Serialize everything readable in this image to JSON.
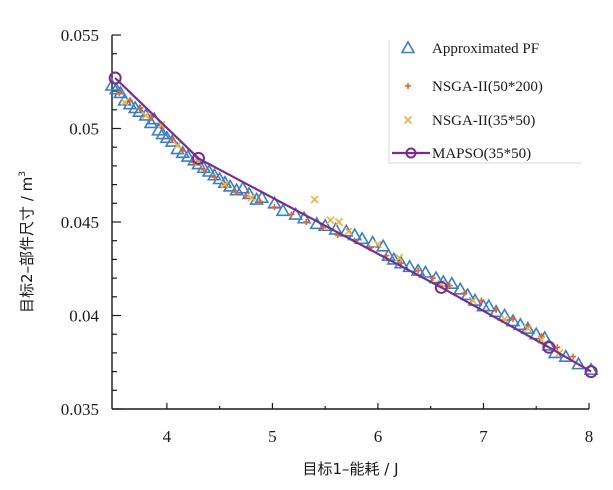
{
  "chart_data": {
    "type": "scatter",
    "title": "",
    "xlabel": "目标1–能耗 / J",
    "ylabel": "目标2–部件尺寸 / m",
    "ylabel_superscript": "3",
    "xlim": [
      3.48,
      8.0
    ],
    "ylim": [
      0.035,
      0.055
    ],
    "x_ticks": [
      4,
      5,
      6,
      7,
      8
    ],
    "x_tick_labels": [
      "4",
      "5",
      "6",
      "7",
      "8"
    ],
    "x_minor_ticks": [
      4.5,
      5.5,
      6.5,
      7.5
    ],
    "y_ticks": [
      0.035,
      0.04,
      0.045,
      0.05,
      0.055
    ],
    "y_tick_labels": [
      "0.035",
      "0.04",
      "0.045",
      "0.05",
      "0.055"
    ],
    "y_minor_step": 0.001,
    "grid": false,
    "legend_position": "top-right",
    "series": [
      {
        "name": "Approximated PF",
        "marker": "triangle-open",
        "color": "#3a7fc4",
        "x": [
          3.48,
          3.52,
          3.56,
          3.6,
          3.65,
          3.7,
          3.74,
          3.8,
          3.85,
          3.88,
          3.92,
          3.96,
          4.0,
          4.05,
          4.1,
          4.15,
          4.2,
          4.26,
          4.3,
          4.35,
          4.4,
          4.45,
          4.5,
          4.55,
          4.6,
          4.66,
          4.72,
          4.78,
          4.85,
          4.9,
          5.02,
          5.1,
          5.22,
          5.3,
          5.42,
          5.5,
          5.6,
          5.7,
          5.78,
          5.85,
          5.95,
          6.05,
          6.1,
          6.15,
          6.22,
          6.3,
          6.38,
          6.45,
          6.55,
          6.62,
          6.7,
          6.78,
          6.85,
          6.92,
          7.0,
          7.05,
          7.12,
          7.2,
          7.28,
          7.35,
          7.42,
          7.5,
          7.58,
          7.62,
          7.68,
          7.78,
          7.9,
          8.02
        ],
        "y": [
          0.0523,
          0.0521,
          0.0519,
          0.0515,
          0.0513,
          0.0511,
          0.0509,
          0.0507,
          0.0503,
          0.0505,
          0.0499,
          0.0497,
          0.0495,
          0.0493,
          0.0489,
          0.0487,
          0.0485,
          0.0483,
          0.0481,
          0.0479,
          0.0477,
          0.0475,
          0.0473,
          0.0471,
          0.0469,
          0.0467,
          0.0468,
          0.0465,
          0.0462,
          0.0463,
          0.046,
          0.0456,
          0.0454,
          0.0452,
          0.0449,
          0.0448,
          0.0446,
          0.0445,
          0.0443,
          0.0441,
          0.0439,
          0.0437,
          0.0432,
          0.043,
          0.0428,
          0.0426,
          0.0424,
          0.0423,
          0.042,
          0.0418,
          0.0417,
          0.0414,
          0.0411,
          0.0408,
          0.0405,
          0.0405,
          0.0402,
          0.04,
          0.0397,
          0.0395,
          0.0393,
          0.039,
          0.0388,
          0.0384,
          0.038,
          0.0378,
          0.0374,
          0.0371
        ]
      },
      {
        "name": "NSGA-II(50*200)",
        "marker": "plus",
        "color": "#e8632a",
        "x": [
          3.55,
          3.65,
          3.75,
          3.85,
          3.95,
          4.05,
          4.15,
          4.25,
          4.35,
          4.45,
          4.55,
          4.65,
          4.75,
          4.88,
          5.02,
          5.18,
          5.32,
          5.48,
          5.62,
          5.78,
          5.92,
          6.08,
          6.22,
          6.38,
          6.52,
          6.68,
          6.82,
          6.98,
          7.12,
          7.28,
          7.42,
          7.55,
          7.7,
          7.85
        ],
        "y": [
          0.0519,
          0.0515,
          0.0511,
          0.0506,
          0.0501,
          0.0494,
          0.0488,
          0.0482,
          0.0478,
          0.0474,
          0.047,
          0.0466,
          0.0464,
          0.0461,
          0.0458,
          0.0454,
          0.045,
          0.0447,
          0.0443,
          0.044,
          0.0436,
          0.0432,
          0.0428,
          0.0424,
          0.042,
          0.0416,
          0.0412,
          0.0408,
          0.0403,
          0.0398,
          0.0394,
          0.0389,
          0.0383,
          0.0378
        ]
      },
      {
        "name": "NSGA-II(35*50)",
        "marker": "x",
        "color": "#f0b23a",
        "x": [
          3.6,
          3.8,
          3.95,
          4.1,
          4.3,
          4.55,
          4.8,
          5.4,
          5.55,
          5.63,
          5.72,
          6.0,
          6.2,
          6.6,
          6.9,
          7.2,
          7.42,
          7.55,
          7.72
        ],
        "y": [
          0.0514,
          0.0507,
          0.0502,
          0.0491,
          0.0482,
          0.047,
          0.0463,
          0.0462,
          0.0451,
          0.045,
          0.0445,
          0.0438,
          0.0431,
          0.0417,
          0.0408,
          0.0398,
          0.0393,
          0.0387,
          0.038
        ]
      },
      {
        "name": "MAPSO(35*50)",
        "marker": "circle-open-line",
        "color": "#7b2d8e",
        "x": [
          3.51,
          4.3,
          6.6,
          7.62,
          8.02
        ],
        "y": [
          0.0527,
          0.0484,
          0.0415,
          0.0383,
          0.037
        ]
      }
    ]
  }
}
